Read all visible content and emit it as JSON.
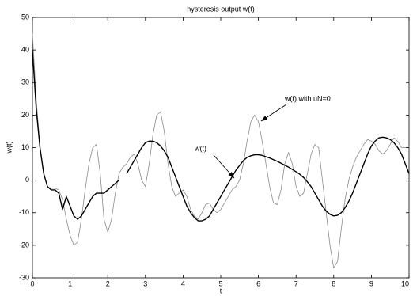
{
  "chart_data": {
    "type": "line",
    "title": "hysteresis output w(t)",
    "x_label": "t",
    "y_label": "w(t)",
    "xlim": [
      0,
      10
    ],
    "xticks": [
      0,
      1,
      2,
      3,
      4,
      5,
      6,
      7,
      8,
      9,
      10
    ],
    "ylim": [
      -30,
      50
    ],
    "yticks": [
      -30,
      -20,
      -10,
      0,
      10,
      20,
      30,
      40,
      50
    ],
    "grid": false,
    "x": [
      0,
      0.1,
      0.2,
      0.3,
      0.4,
      0.5,
      0.6,
      0.7,
      0.8,
      0.9,
      1,
      1.1,
      1.2,
      1.3,
      1.4,
      1.5,
      1.6,
      1.7,
      1.8,
      1.9,
      2,
      2.1,
      2.2,
      2.3,
      2.4,
      2.5,
      2.6,
      2.7,
      2.8,
      2.9,
      3,
      3.1,
      3.2,
      3.3,
      3.4,
      3.5,
      3.6,
      3.7,
      3.8,
      3.9,
      4,
      4.1,
      4.2,
      4.3,
      4.4,
      4.5,
      4.6,
      4.7,
      4.8,
      4.9,
      5,
      5.1,
      5.2,
      5.3,
      5.4,
      5.5,
      5.6,
      5.7,
      5.8,
      5.9,
      6,
      6.1,
      6.2,
      6.3,
      6.4,
      6.5,
      6.6,
      6.7,
      6.8,
      6.9,
      7,
      7.1,
      7.2,
      7.3,
      7.4,
      7.5,
      7.6,
      7.7,
      7.8,
      7.9,
      8,
      8.1,
      8.2,
      8.3,
      8.4,
      8.5,
      8.6,
      8.7,
      8.8,
      8.9,
      9,
      9.1,
      9.2,
      9.3,
      9.4,
      9.5,
      9.6,
      9.7,
      9.8,
      9.9,
      10
    ],
    "series": [
      {
        "name": "w(t) with uN=0",
        "color": "#8a8a8a",
        "width": 0.8,
        "values": [
          45,
          25,
          10,
          2,
          -2,
          -2.5,
          -2.5,
          -3,
          -6,
          -12,
          -17,
          -20,
          -19,
          -12,
          -3,
          5,
          10,
          11,
          2,
          -12,
          -16,
          -12,
          -4,
          2,
          4,
          5,
          7,
          8,
          5,
          0,
          -2,
          5,
          14,
          20,
          21,
          15,
          5,
          -2,
          -5,
          -4,
          -3,
          -5,
          -9,
          -11,
          -12,
          -10,
          -7.5,
          -7,
          -9,
          -10,
          -9,
          -7,
          -5,
          -3,
          -2,
          0,
          5,
          12,
          18,
          20,
          18,
          12,
          5,
          -2,
          -7,
          -7.5,
          -3,
          5,
          8.5,
          5,
          -2,
          -5,
          -4,
          2,
          8,
          11,
          10,
          0,
          -10,
          -20,
          -27,
          -25,
          -15,
          -6,
          0,
          4,
          7,
          9,
          11,
          12.5,
          12,
          11,
          9,
          8,
          9,
          11,
          13,
          12,
          10,
          10,
          10
        ]
      },
      {
        "name": "w(t)",
        "color": "#000000",
        "width": 1.4,
        "values": [
          40,
          22,
          10,
          2,
          -2,
          -3,
          -3,
          -4,
          -9,
          -5,
          -8,
          -11,
          -12,
          -11,
          -9,
          -7,
          -5,
          -4,
          -4,
          -4,
          -3,
          -2,
          -1,
          0,
          null,
          2,
          4,
          6,
          8,
          10,
          11.5,
          12,
          12,
          11.5,
          10.5,
          9,
          7,
          4,
          1,
          -2,
          -5,
          -8,
          -10,
          -11.5,
          -12.5,
          -12.5,
          -12,
          -11,
          -9,
          -7,
          -5,
          -3,
          -1,
          1,
          3,
          4.5,
          6,
          7,
          7.5,
          7.8,
          7.8,
          7.6,
          7.2,
          6.8,
          6.3,
          5.8,
          5.2,
          4.6,
          4,
          3.3,
          2.6,
          1.8,
          0.8,
          -0.5,
          -2,
          -4,
          -6,
          -8,
          -9.5,
          -10.5,
          -11,
          -10.8,
          -10,
          -8.5,
          -6.5,
          -4,
          -1,
          2,
          5,
          8,
          10.5,
          12,
          13,
          13.2,
          13,
          12.5,
          11.5,
          10,
          8,
          5,
          2
        ]
      }
    ],
    "annotations": [
      "w(t) with uN=0",
      "w(t)"
    ]
  }
}
